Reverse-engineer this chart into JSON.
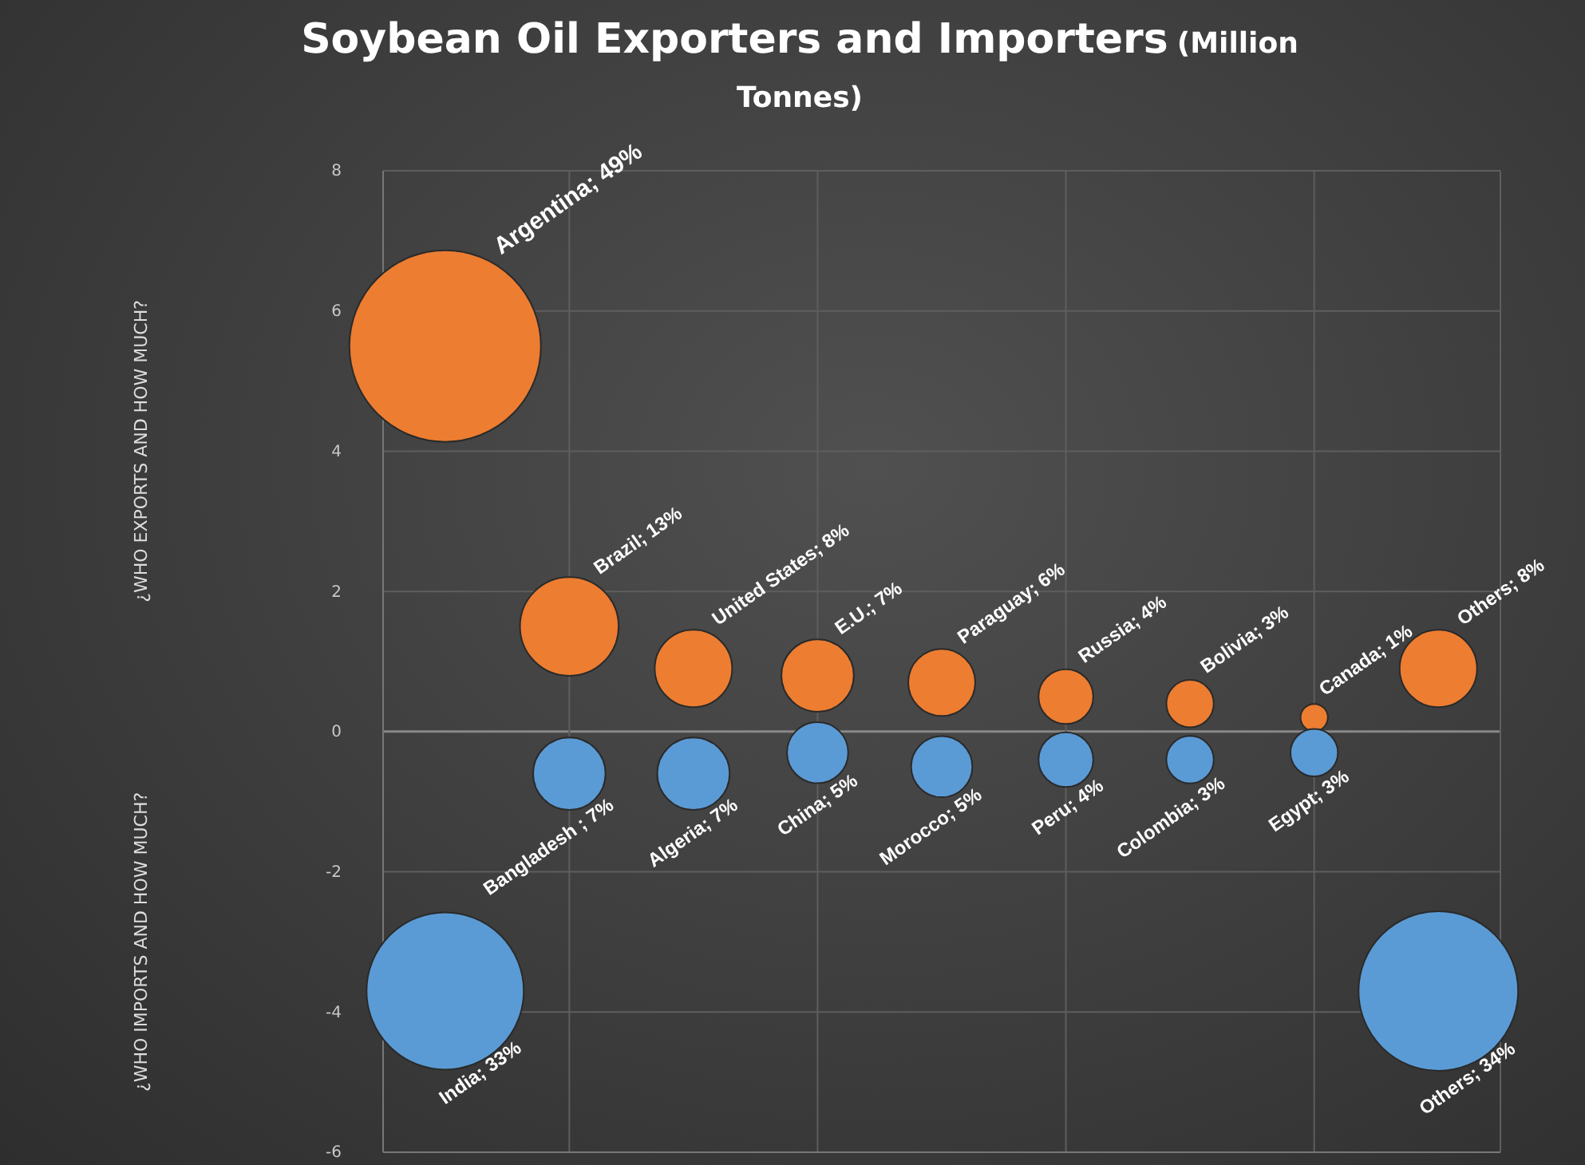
{
  "chart_data": {
    "type": "bubble",
    "title": "Soybean Oil Exporters and Importers",
    "subtitle": "(Million Tonnes)",
    "annotations": [
      "¿WHO EXPORTS AND HOW MUCH?",
      "¿WHO IMPORTS AND HOW MUCH?"
    ],
    "categories": [
      null,
      null,
      null,
      null,
      null,
      null,
      null,
      null,
      null
    ],
    "ylim": [
      -6,
      8
    ],
    "yticks": [
      -6,
      -4,
      -2,
      0,
      2,
      4,
      6,
      8
    ],
    "grid": true,
    "tick_labels": "y",
    "series": [
      {
        "color": "#ed7d31",
        "values": [
          5.5,
          1.5,
          0.9,
          0.8,
          0.7,
          0.5,
          0.4,
          0.2,
          0.9
        ],
        "sizes": [
          49,
          13,
          8,
          7,
          6,
          4,
          3,
          1,
          8
        ],
        "value_labels": [
          "Argentina; 49%",
          "Brazil; 13%",
          "United States; 8%",
          "E.U.; 7%",
          "Paraguay; 6%",
          "Russia; 4%",
          "Bolivia; 3%",
          "Canada; 1%",
          "Others; 8%"
        ]
      },
      {
        "color": "#5b9bd5",
        "values": [
          -3.7,
          -0.6,
          -0.6,
          -0.3,
          -0.5,
          -0.4,
          -0.4,
          -0.3,
          -3.7
        ],
        "sizes": [
          33,
          7,
          7,
          5,
          5,
          4,
          3,
          3,
          34
        ],
        "value_labels": [
          "India; 33%",
          "Bangladesh ; 7%",
          "Algeria; 7%",
          "China; 5%",
          "Morocco; 5%",
          "Peru; 4%",
          "Colombia; 3%",
          "Egypt; 3%",
          "Others; 34%"
        ]
      }
    ]
  }
}
